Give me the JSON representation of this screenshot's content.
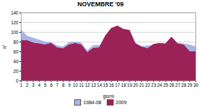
{
  "chart_data": {
    "type": "area",
    "title": "NOVEMBRE '09",
    "xlabel": "giorni",
    "ylabel": "n°",
    "x": [
      1,
      2,
      3,
      4,
      5,
      6,
      7,
      8,
      9,
      10,
      11,
      12,
      13,
      14,
      15,
      16,
      17,
      18,
      19,
      20,
      21,
      22,
      23,
      24,
      25,
      26,
      27,
      28,
      29,
      30
    ],
    "series": [
      {
        "name": "1984-08",
        "color": "#aab4e8",
        "values": [
          105,
          92,
          88,
          84,
          80,
          79,
          72,
          70,
          79,
          80,
          78,
          62,
          73,
          73,
          82,
          82,
          85,
          85,
          84,
          78,
          70,
          72,
          72,
          70,
          72,
          80,
          78,
          76,
          74,
          70
        ]
      },
      {
        "name": "2009",
        "color": "#9b2257",
        "values": [
          83,
          83,
          78,
          76,
          74,
          77,
          68,
          66,
          74,
          77,
          74,
          58,
          67,
          68,
          92,
          108,
          113,
          106,
          104,
          76,
          70,
          66,
          75,
          77,
          76,
          90,
          76,
          74,
          60,
          60
        ]
      }
    ],
    "xlim": [
      1,
      30
    ],
    "xticks": [
      1,
      2,
      3,
      4,
      5,
      6,
      7,
      8,
      9,
      10,
      11,
      12,
      13,
      14,
      15,
      16,
      17,
      18,
      19,
      20,
      21,
      22,
      23,
      24,
      25,
      26,
      27,
      28,
      29,
      30
    ],
    "ylim": [
      0,
      140
    ],
    "yticks": [
      0,
      20,
      40,
      60,
      80,
      100,
      120,
      140
    ],
    "grid": true,
    "legend": "bottom"
  }
}
